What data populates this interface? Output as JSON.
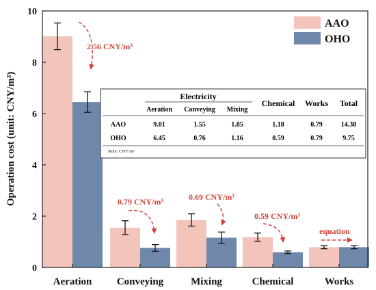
{
  "chart_data": {
    "type": "bar",
    "categories": [
      "Aeration",
      "Conveying",
      "Mixing",
      "Chemical",
      "Works"
    ],
    "series": [
      {
        "name": "AAO",
        "color": "#f2c4bc",
        "values": [
          9.01,
          1.55,
          1.85,
          1.18,
          0.79
        ],
        "errors": [
          0.52,
          0.27,
          0.24,
          0.16,
          0.06
        ]
      },
      {
        "name": "OHO",
        "color": "#6f87aa",
        "values": [
          6.45,
          0.76,
          1.16,
          0.59,
          0.79
        ],
        "errors": [
          0.4,
          0.13,
          0.22,
          0.05,
          0.06
        ]
      }
    ],
    "ylabel": "Operation cost (unit: CNY/m³)",
    "ylim": [
      0,
      10
    ],
    "yticks": [
      "0",
      "2",
      "4",
      "6",
      "8",
      "10"
    ],
    "legend_position": "top-right",
    "annotation_color": "#d0443a",
    "annotations": [
      {
        "category": "Aeration",
        "text": "2.56 CNY/m³"
      },
      {
        "category": "Conveying",
        "text": "0.79 CNY/m³"
      },
      {
        "category": "Mixing",
        "text": "0.69 CNY/m³"
      },
      {
        "category": "Chemical",
        "text": "0.59 CNY/m³"
      },
      {
        "category": "Works",
        "text": "equation"
      }
    ]
  },
  "table": {
    "group_header": "Electricity",
    "sub_headers": [
      "Aeration",
      "Conveying",
      "Mixing"
    ],
    "headers": [
      "Chemical",
      "Works",
      "Total"
    ],
    "rows": [
      {
        "label": "AAO",
        "cells": [
          "9.01",
          "1.55",
          "1.85",
          "1.18",
          "0.79",
          "14.38"
        ]
      },
      {
        "label": "OHO",
        "cells": [
          "6.45",
          "0.76",
          "1.16",
          "0.59",
          "0.79",
          "9.75"
        ]
      }
    ],
    "note": "Note: CNY/m³"
  }
}
